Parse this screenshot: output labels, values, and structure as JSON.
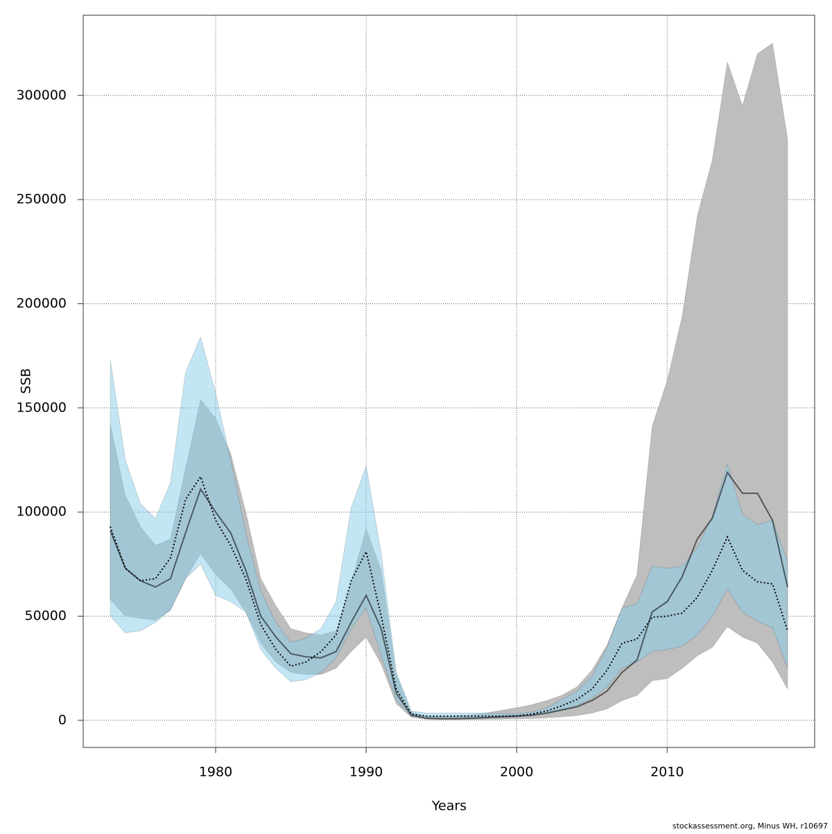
{
  "chart_data": {
    "type": "line",
    "xlabel": "Years",
    "ylabel": "SSB",
    "footnote": "stockassessment.org, Minus WH, r10697",
    "x": [
      1973,
      1974,
      1975,
      1976,
      1977,
      1978,
      1979,
      1980,
      1981,
      1982,
      1983,
      1984,
      1985,
      1986,
      1987,
      1988,
      1989,
      1990,
      1991,
      1992,
      1993,
      1994,
      1995,
      1996,
      1997,
      1998,
      1999,
      2000,
      2001,
      2002,
      2003,
      2004,
      2005,
      2006,
      2007,
      2008,
      2009,
      2010,
      2011,
      2012,
      2013,
      2014,
      2015,
      2016,
      2017,
      2018
    ],
    "series": [
      {
        "color": "#000000",
        "band_color": "#bebebe",
        "dash": false,
        "values": [
          91000,
          73000,
          67000,
          64000,
          68000,
          90000,
          111000,
          100000,
          90000,
          72000,
          50000,
          40000,
          32000,
          30500,
          30000,
          33000,
          47000,
          60000,
          44000,
          13000,
          2500,
          1000,
          800,
          800,
          1000,
          1300,
          1700,
          2000,
          2500,
          3500,
          5000,
          6500,
          9500,
          14000,
          23000,
          29000,
          52000,
          57000,
          69000,
          87000,
          97000,
          119000,
          109000,
          109000,
          96000,
          64000
        ],
        "lower": [
          58000,
          50000,
          49000,
          48000,
          53000,
          68000,
          80000,
          70000,
          63000,
          52000,
          37000,
          28000,
          23000,
          22000,
          22000,
          25000,
          33000,
          40000,
          27000,
          8000,
          1500,
          500,
          300,
          300,
          400,
          500,
          600,
          700,
          900,
          1200,
          1700,
          2300,
          3500,
          5500,
          9500,
          12000,
          19000,
          20000,
          25000,
          31000,
          35000,
          45000,
          40000,
          37000,
          28000,
          15000
        ],
        "upper": [
          142000,
          108000,
          93000,
          84000,
          87000,
          121000,
          154000,
          145000,
          128000,
          100000,
          68000,
          55000,
          44000,
          42000,
          41000,
          43000,
          66000,
          92000,
          72000,
          22000,
          4000,
          2000,
          2000,
          2200,
          2600,
          3500,
          4800,
          6000,
          7500,
          9500,
          12000,
          16000,
          24000,
          36000,
          54000,
          70000,
          141000,
          163000,
          194000,
          242000,
          269000,
          316000,
          295000,
          320000,
          325000,
          279000
        ]
      },
      {
        "color": "#000000",
        "band_color": "rgba(135,206,235,0.5)",
        "dash": true,
        "values": [
          93000,
          73000,
          67000,
          68000,
          78000,
          106000,
          117000,
          96000,
          84000,
          68000,
          46000,
          34000,
          26000,
          28000,
          33000,
          41000,
          67000,
          81000,
          50000,
          15000,
          3000,
          2000,
          2000,
          2000,
          2000,
          2000,
          2000,
          2200,
          3000,
          4500,
          7000,
          10000,
          15000,
          24000,
          37000,
          39000,
          49500,
          50000,
          51500,
          59000,
          72000,
          88000,
          72000,
          66500,
          65500,
          43000
        ],
        "lower": [
          50000,
          42000,
          43000,
          47000,
          53000,
          68000,
          75000,
          60000,
          57000,
          52000,
          34000,
          25000,
          18500,
          19500,
          23000,
          30000,
          44000,
          54000,
          31000,
          10000,
          2000,
          1200,
          1200,
          1200,
          1200,
          1300,
          1400,
          1600,
          2200,
          3200,
          4800,
          7000,
          10500,
          16000,
          25000,
          28000,
          33000,
          34000,
          35500,
          41000,
          50000,
          63000,
          52000,
          47500,
          44500,
          25000
        ],
        "upper": [
          173000,
          125000,
          104000,
          97000,
          114000,
          167000,
          184000,
          157000,
          125000,
          90000,
          62000,
          47000,
          37500,
          39500,
          44000,
          57000,
          102000,
          122000,
          80000,
          23000,
          4500,
          3500,
          3500,
          3500,
          3500,
          3500,
          3200,
          3200,
          4000,
          6000,
          10000,
          14000,
          21000,
          35000,
          54000,
          56000,
          74000,
          73000,
          74000,
          83000,
          98000,
          123000,
          99000,
          94000,
          96000,
          76000
        ]
      }
    ],
    "xlim": [
      1971.2,
      2019.8
    ],
    "ylim": [
      -13000,
      338500
    ],
    "xticks": [
      1980,
      1990,
      2000,
      2010
    ],
    "yticks": [
      0,
      50000,
      100000,
      150000,
      200000,
      250000,
      300000
    ],
    "grid": true
  }
}
